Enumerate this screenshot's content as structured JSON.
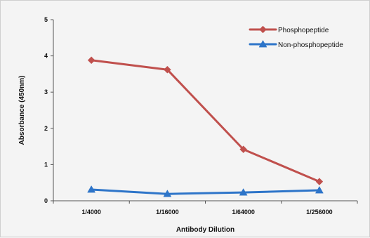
{
  "chart_data": {
    "type": "line",
    "title": "",
    "xlabel": "Antibody Dilution",
    "ylabel": "Absorbance (450nm)",
    "categories": [
      "1/4000",
      "1/16000",
      "1/64000",
      "1/256000"
    ],
    "ylim": [
      0,
      5
    ],
    "yticks": [
      "0",
      "1",
      "2",
      "3",
      "4",
      "5"
    ],
    "grid": false,
    "legend_position": "top-right",
    "series": [
      {
        "name": "Phosphopeptide",
        "values": [
          3.88,
          3.62,
          1.42,
          0.53
        ],
        "color": "#c0504d",
        "marker": "diamond"
      },
      {
        "name": "Non-phosphopeptide",
        "values": [
          0.31,
          0.19,
          0.23,
          0.29
        ],
        "color": "#2e75c9",
        "marker": "triangle"
      }
    ]
  }
}
